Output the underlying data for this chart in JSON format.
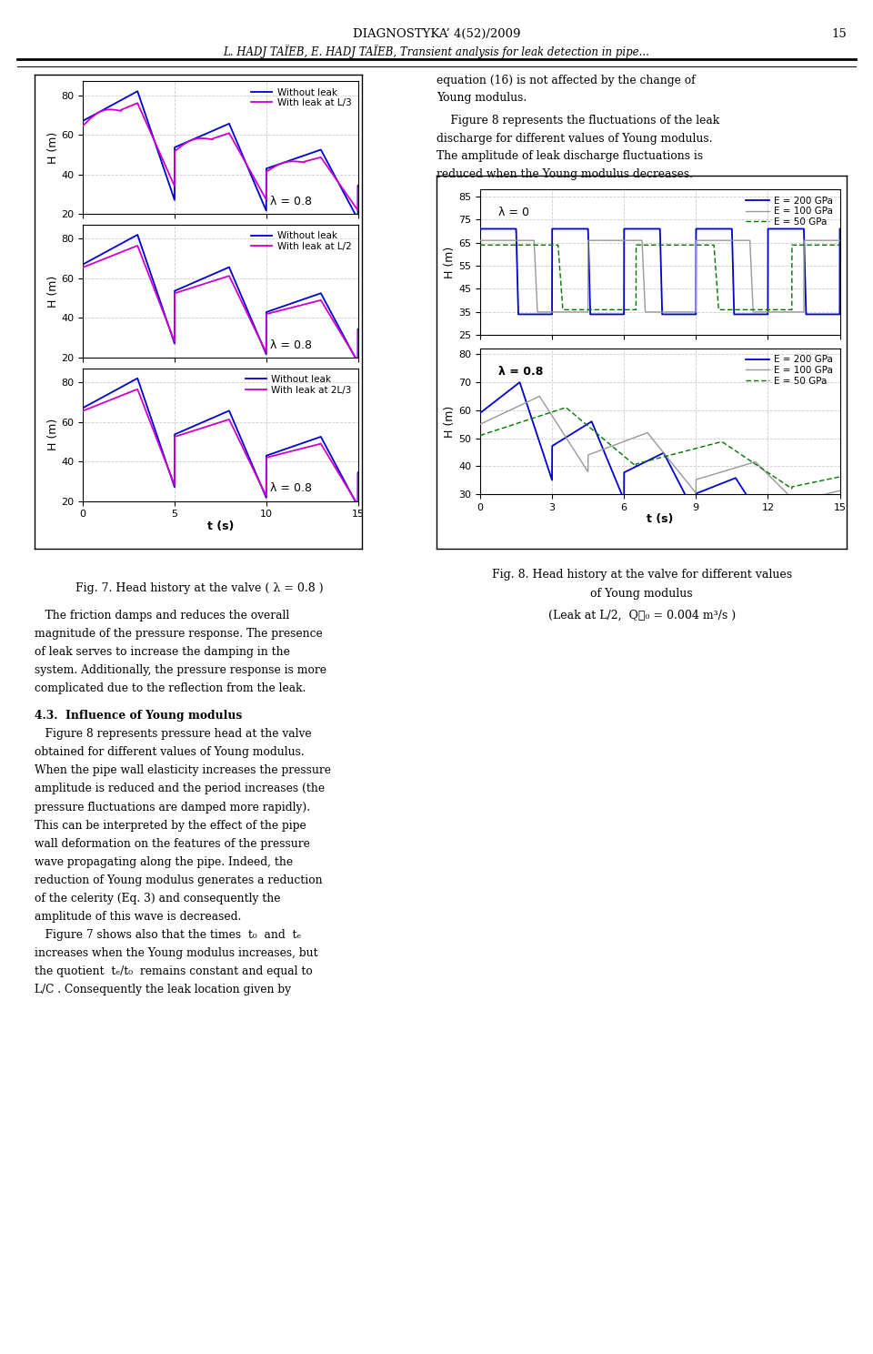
{
  "page_title": "DIAGNOSTYKA’ 4(52)/2009",
  "page_number": "15",
  "page_subtitle": "L. HADJ TAÏEB, E. HADJ TAÏEB, Transient analysis for leak detection in pipe...",
  "fig7_title": "Fig. 7. Head history at the valve ( λ = 0.8 )",
  "fig8_title_line1": "Fig. 8. Head history at the valve for different values",
  "fig8_title_line2": "of Young modulus",
  "fig8_subtitle": "(Leak at L/2,  Qℓ₀ = 0.004 m³/s )",
  "right_top_text": [
    "equation (16) is not affected by the change of",
    "Young modulus.",
    "    Figure 8 represents the fluctuations of the leak",
    "discharge for different values of Young modulus.",
    "The amplitude of leak discharge fluctuations is",
    "reduced when the Young modulus decreases."
  ],
  "body_para1": [
    "   The friction damps and reduces the overall",
    "magnitude of the pressure response. The presence",
    "of leak serves to increase the damping in the",
    "system. Additionally, the pressure response is more",
    "complicated due to the reflection from the leak."
  ],
  "section_title": "4.3.  Influence of Young modulus",
  "section_body": [
    "   Figure 8 represents pressure head at the valve",
    "obtained for different values of Young modulus.",
    "When the pipe wall elasticity increases the pressure",
    "amplitude is reduced and the period increases (the",
    "pressure fluctuations are damped more rapidly).",
    "This can be interpreted by the effect of the pipe",
    "wall deformation on the features of the pressure",
    "wave propagating along the pipe. Indeed, the",
    "reduction of Young modulus generates a reduction",
    "of the celerity (Eq. 3) and consequently the",
    "amplitude of this wave is decreased.",
    "   Figure 7 shows also that the times  t₀  and  tₑ",
    "increases when the Young modulus increases, but",
    "the quotient  tₑ/t₀  remains constant and equal to",
    "L/C . Consequently the leak location given by"
  ],
  "leg1": [
    "Without leak",
    "With leak at L/3"
  ],
  "leg2": [
    "Without leak",
    "With leak at L/2"
  ],
  "leg3": [
    "Without leak",
    "With leak at 2L/3"
  ],
  "leg4": [
    "E = 200 GPa",
    "E = 100 GPa",
    "E = 50 GPa"
  ],
  "leg5": [
    "E = 200 GPa",
    "E = 100 GPa",
    "E = 50 GPa"
  ],
  "blue": "#0000CD",
  "magenta": "#CC00CC",
  "gray_thin": "#999999",
  "green_dot": "#007700",
  "lam08": "λ = 0.8",
  "lam0": "λ = 0"
}
